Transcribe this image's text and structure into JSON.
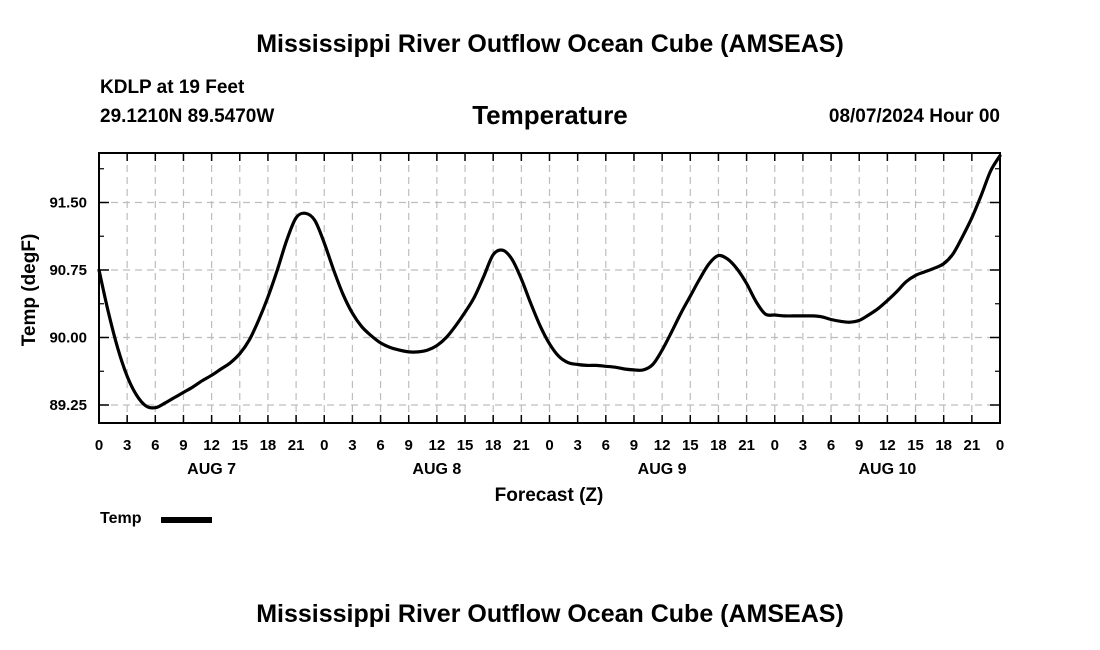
{
  "header": {
    "title": "Mississippi River Outflow Ocean Cube (AMSEAS)",
    "station_line": "KDLP at 19 Feet",
    "coords": "29.1210N  89.5470W",
    "variable": "Temperature",
    "datetime": "08/07/2024 Hour 00"
  },
  "footer": {
    "title": "Mississippi River Outflow Ocean Cube (AMSEAS)"
  },
  "legend": {
    "label": "Temp",
    "color": "#000000"
  },
  "chart_data": {
    "type": "line",
    "title": "Temperature",
    "xlabel": "Forecast (Z)",
    "ylabel": "Temp (degF)",
    "x_unit": "forecast hour",
    "xlim": [
      0,
      96
    ],
    "ylim": [
      89.05,
      92.05
    ],
    "y_ticks": [
      89.25,
      90.0,
      90.75,
      91.5
    ],
    "y_tick_labels": [
      "89.25",
      "90.00",
      "90.75",
      "91.50"
    ],
    "x_ticks": [
      0,
      3,
      6,
      9,
      12,
      15,
      18,
      21,
      24,
      27,
      30,
      33,
      36,
      39,
      42,
      45,
      48,
      51,
      54,
      57,
      60,
      63,
      66,
      69,
      72,
      75,
      78,
      81,
      84,
      87,
      90,
      93,
      96
    ],
    "x_tick_labels": [
      "0",
      "3",
      "6",
      "9",
      "12",
      "15",
      "18",
      "21",
      "0",
      "3",
      "6",
      "9",
      "12",
      "15",
      "18",
      "21",
      "0",
      "3",
      "6",
      "9",
      "12",
      "15",
      "18",
      "21",
      "0",
      "3",
      "6",
      "9",
      "12",
      "15",
      "18",
      "21",
      "0"
    ],
    "day_labels": [
      {
        "label": "AUG 7",
        "hour": 12
      },
      {
        "label": "AUG 8",
        "hour": 36
      },
      {
        "label": "AUG 9",
        "hour": 60
      },
      {
        "label": "AUG 10",
        "hour": 84
      }
    ],
    "grid": true,
    "series": [
      {
        "name": "Temp",
        "color": "#000000",
        "x": [
          0,
          1,
          2,
          3,
          4,
          5,
          6,
          7,
          8,
          9,
          10,
          11,
          12,
          13,
          14,
          15,
          16,
          17,
          18,
          19,
          20,
          21,
          22,
          23,
          24,
          25,
          26,
          27,
          28,
          29,
          30,
          31,
          32,
          33,
          34,
          35,
          36,
          37,
          38,
          39,
          40,
          41,
          42,
          43,
          44,
          45,
          46,
          47,
          48,
          49,
          50,
          51,
          52,
          53,
          54,
          55,
          56,
          57,
          58,
          59,
          60,
          61,
          62,
          63,
          64,
          65,
          66,
          67,
          68,
          69,
          70,
          71,
          72,
          73,
          74,
          75,
          76,
          77,
          78,
          79,
          80,
          81,
          82,
          83,
          84,
          85,
          86,
          87,
          88,
          89,
          90,
          91,
          92,
          93,
          94,
          95,
          96
        ],
        "values": [
          90.75,
          90.28,
          89.88,
          89.57,
          89.36,
          89.24,
          89.22,
          89.27,
          89.33,
          89.39,
          89.45,
          89.52,
          89.58,
          89.65,
          89.72,
          89.82,
          89.97,
          90.19,
          90.45,
          90.75,
          91.08,
          91.33,
          91.38,
          91.3,
          91.05,
          90.75,
          90.48,
          90.27,
          90.12,
          90.02,
          89.94,
          89.89,
          89.86,
          89.84,
          89.84,
          89.86,
          89.91,
          90.0,
          90.13,
          90.28,
          90.45,
          90.68,
          90.92,
          90.97,
          90.87,
          90.65,
          90.38,
          90.13,
          89.93,
          89.79,
          89.72,
          89.7,
          89.69,
          89.69,
          89.68,
          89.67,
          89.65,
          89.64,
          89.64,
          89.7,
          89.86,
          90.06,
          90.27,
          90.46,
          90.65,
          90.82,
          90.91,
          90.87,
          90.76,
          90.6,
          90.4,
          90.26,
          90.25,
          90.24,
          90.24,
          90.24,
          90.24,
          90.23,
          90.2,
          90.18,
          90.17,
          90.19,
          90.25,
          90.32,
          90.41,
          90.51,
          90.62,
          90.69,
          90.73,
          90.77,
          90.82,
          90.93,
          91.12,
          91.33,
          91.58,
          91.85,
          92.02
        ]
      }
    ]
  }
}
